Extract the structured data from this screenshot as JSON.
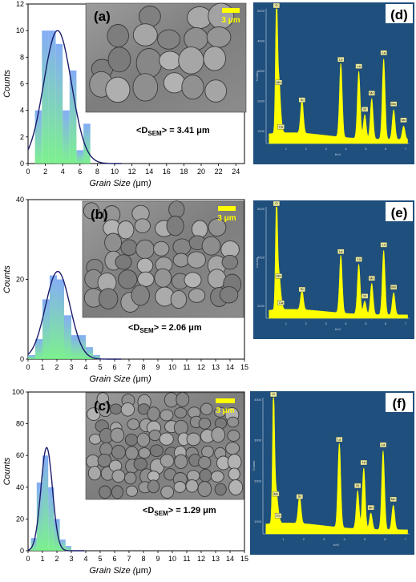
{
  "chart_data": [
    {
      "type": "bar",
      "panel": "(a)",
      "ylabel": "Counts",
      "xlabel_prefix": "Grain Size (",
      "xlabel_unit": "μm",
      "xlabel_suffix": ")",
      "xlim": [
        0,
        25
      ],
      "ylim": [
        0,
        12
      ],
      "xticks": [
        0,
        2,
        4,
        6,
        8,
        10,
        12,
        14,
        16,
        18,
        20,
        22,
        24
      ],
      "yticks": [
        0,
        2,
        4,
        6,
        8,
        10,
        12
      ],
      "bin_width": 0.8,
      "bins": [
        1.2,
        2.0,
        2.8,
        3.6,
        4.4,
        5.2,
        6.0,
        6.8
      ],
      "values": [
        4,
        10,
        10,
        9,
        4,
        7,
        1,
        3
      ],
      "fit": {
        "peak": 10,
        "mean": 3.41,
        "sigma": 1.6
      },
      "scale_bar": "3 μm",
      "label_pre": "<D",
      "label_sub": "SEM",
      "label_post": "> = 3.41 μm"
    },
    {
      "type": "bar",
      "panel": "(b)",
      "ylabel": "Counts",
      "xlabel_prefix": "Grain Size (",
      "xlabel_unit": "μm",
      "xlabel_suffix": ")",
      "xlim": [
        0,
        15
      ],
      "ylim": [
        0,
        40
      ],
      "xticks": [
        0,
        1,
        2,
        3,
        4,
        5,
        6,
        7,
        8,
        9,
        10,
        11,
        12,
        13,
        14,
        15
      ],
      "yticks": [
        0,
        20,
        40
      ],
      "bin_width": 0.5,
      "bins": [
        0.25,
        0.75,
        1.25,
        1.75,
        2.25,
        2.75,
        3.25,
        3.75,
        4.25,
        4.75
      ],
      "values": [
        1,
        5,
        15,
        21,
        20,
        11,
        6,
        6,
        3,
        1
      ],
      "fit": {
        "peak": 22,
        "mean": 2.06,
        "sigma": 0.85
      },
      "scale_bar": "3 μm",
      "label_pre": "<D",
      "label_sub": "SEM",
      "label_post": "> = 2.06 μm"
    },
    {
      "type": "bar",
      "panel": "(c)",
      "ylabel": "Counts",
      "xlabel_prefix": "Grain Size (",
      "xlabel_unit": "μm",
      "xlabel_suffix": ")",
      "xlim": [
        0,
        15
      ],
      "ylim": [
        0,
        100
      ],
      "xticks": [
        0,
        1,
        2,
        3,
        4,
        5,
        6,
        7,
        8,
        9,
        10,
        11,
        12,
        13,
        14,
        15
      ],
      "yticks": [
        0,
        20,
        40,
        60,
        80,
        100
      ],
      "bin_width": 0.4,
      "bins": [
        0.4,
        0.8,
        1.2,
        1.6,
        2.0,
        2.4,
        2.8
      ],
      "values": [
        8,
        43,
        60,
        40,
        20,
        7,
        3
      ],
      "fit": {
        "peak": 65,
        "mean": 1.29,
        "sigma": 0.4
      },
      "scale_bar": "3 μm",
      "label_pre": "<D",
      "label_sub": "SEM",
      "label_post": "> = 1.29 μm"
    }
  ],
  "edx_panels": [
    {
      "panel": "(d)",
      "yticks": [
        "5000",
        "4000",
        "3000",
        "2000",
        "1000"
      ],
      "ylabel": "Counts",
      "xlabel": "KeV",
      "xticks": [
        "1",
        "2",
        "3",
        "4",
        "5",
        "6",
        "7"
      ],
      "peak_labels": [
        "O",
        "Mn",
        "Ca",
        "Sr",
        "La",
        "La",
        "Sr",
        "Mn",
        "La",
        "Mn",
        "Mn"
      ]
    },
    {
      "panel": "(e)",
      "yticks": [
        "6000",
        "4000",
        "2000"
      ],
      "ylabel": "Counts",
      "xlabel": "KeV",
      "xticks": [
        "1",
        "2",
        "3",
        "4",
        "5",
        "6",
        "7"
      ],
      "peak_labels": [
        "O",
        "Mn",
        "Ca",
        "Sr",
        "La",
        "La",
        "Sr",
        "Mn",
        "La",
        "Mn"
      ]
    },
    {
      "panel": "(f)",
      "yticks": [
        "4000",
        "3000",
        "2000",
        "1000"
      ],
      "ylabel": "Counts",
      "xlabel": "KeV",
      "xticks": [
        "1",
        "2",
        "3",
        "4",
        "5",
        "6",
        "7"
      ],
      "peak_labels": [
        "O",
        "Mn",
        "Ca",
        "Sr",
        "La",
        "Sr",
        "La",
        "Mn",
        "La",
        "Mn"
      ]
    }
  ],
  "colors": {
    "bar_top": "#6f9ef4",
    "bar_bottom": "#66ee7a",
    "fit_line": "#1c1c6b",
    "edx_bg": "#1f4f7d",
    "edx_spectrum": "#ffff00",
    "scale_bar": "#ffff00"
  }
}
